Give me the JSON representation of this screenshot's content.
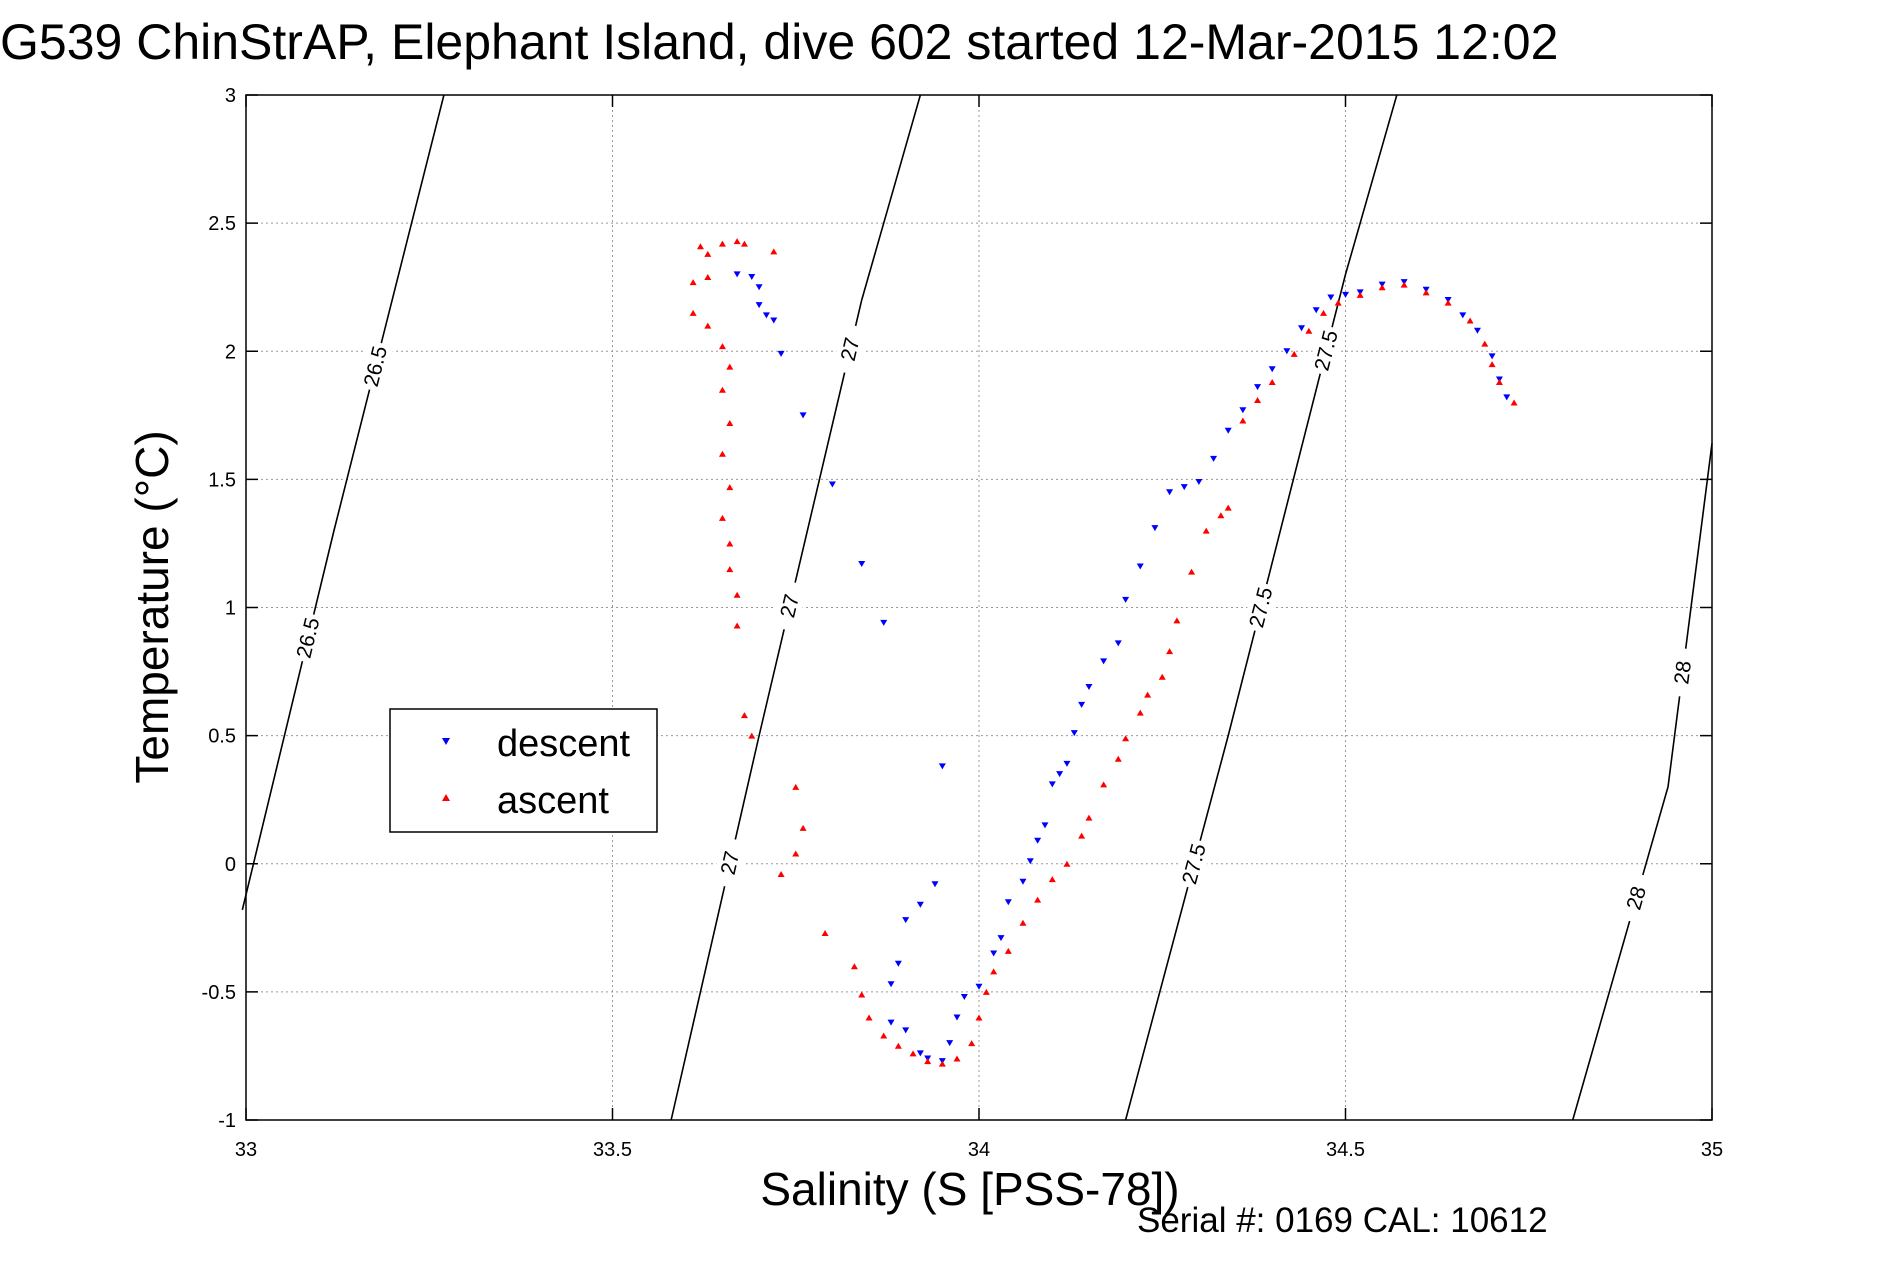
{
  "figure": {
    "title": "G539 ChinStrAP, Elephant Island, dive 602 started 12-Mar-2015 12:02",
    "footer": "Serial #: 0169 CAL: 10612"
  },
  "chart_data": {
    "type": "scatter",
    "xlabel": "Salinity (S [PSS-78])",
    "ylabel": "Temperature (°C)",
    "xlim": [
      33,
      35
    ],
    "ylim": [
      -1,
      3
    ],
    "xticks": [
      33,
      33.5,
      34,
      34.5,
      35
    ],
    "xtick_labels": [
      "33",
      "33.5",
      "34",
      "34.5",
      "35"
    ],
    "yticks": [
      -1,
      -0.5,
      0,
      0.5,
      1,
      1.5,
      2,
      2.5,
      3
    ],
    "ytick_labels": [
      "-1",
      "-0.5",
      "0",
      "0.5",
      "1",
      "1.5",
      "2",
      "2.5",
      "3"
    ],
    "grid": true,
    "legend_position": "center-left",
    "colors": {
      "descent": "#0000ff",
      "ascent": "#ff0000",
      "contour": "#000000"
    },
    "series": [
      {
        "name": "descent",
        "marker": "triangle-down",
        "color": "#0000ff",
        "points": [
          [
            33.67,
            2.3
          ],
          [
            33.69,
            2.29
          ],
          [
            33.7,
            2.25
          ],
          [
            33.7,
            2.18
          ],
          [
            33.71,
            2.14
          ],
          [
            33.72,
            2.12
          ],
          [
            33.73,
            1.99
          ],
          [
            33.76,
            1.75
          ],
          [
            33.8,
            1.48
          ],
          [
            33.84,
            1.17
          ],
          [
            33.87,
            0.94
          ],
          [
            33.95,
            0.38
          ],
          [
            33.94,
            -0.08
          ],
          [
            33.92,
            -0.16
          ],
          [
            33.9,
            -0.22
          ],
          [
            33.89,
            -0.39
          ],
          [
            33.88,
            -0.47
          ],
          [
            33.88,
            -0.62
          ],
          [
            33.9,
            -0.65
          ],
          [
            33.92,
            -0.74
          ],
          [
            33.93,
            -0.76
          ],
          [
            33.95,
            -0.77
          ],
          [
            33.96,
            -0.7
          ],
          [
            33.97,
            -0.6
          ],
          [
            33.98,
            -0.52
          ],
          [
            34.0,
            -0.48
          ],
          [
            34.02,
            -0.35
          ],
          [
            34.03,
            -0.29
          ],
          [
            34.04,
            -0.15
          ],
          [
            34.06,
            -0.07
          ],
          [
            34.07,
            0.01
          ],
          [
            34.08,
            0.09
          ],
          [
            34.09,
            0.15
          ],
          [
            34.1,
            0.31
          ],
          [
            34.11,
            0.35
          ],
          [
            34.12,
            0.39
          ],
          [
            34.13,
            0.51
          ],
          [
            34.14,
            0.62
          ],
          [
            34.15,
            0.69
          ],
          [
            34.17,
            0.79
          ],
          [
            34.19,
            0.86
          ],
          [
            34.2,
            1.03
          ],
          [
            34.22,
            1.16
          ],
          [
            34.24,
            1.31
          ],
          [
            34.26,
            1.45
          ],
          [
            34.28,
            1.47
          ],
          [
            34.3,
            1.49
          ],
          [
            34.32,
            1.58
          ],
          [
            34.34,
            1.69
          ],
          [
            34.36,
            1.77
          ],
          [
            34.38,
            1.86
          ],
          [
            34.4,
            1.93
          ],
          [
            34.42,
            2.0
          ],
          [
            34.44,
            2.09
          ],
          [
            34.46,
            2.16
          ],
          [
            34.48,
            2.21
          ],
          [
            34.5,
            2.22
          ],
          [
            34.52,
            2.23
          ],
          [
            34.55,
            2.26
          ],
          [
            34.58,
            2.27
          ],
          [
            34.61,
            2.24
          ],
          [
            34.64,
            2.2
          ],
          [
            34.66,
            2.14
          ],
          [
            34.68,
            2.08
          ],
          [
            34.7,
            1.98
          ],
          [
            34.71,
            1.89
          ],
          [
            34.72,
            1.82
          ]
        ]
      },
      {
        "name": "ascent",
        "marker": "triangle-up",
        "color": "#ff0000",
        "points": [
          [
            33.62,
            2.41
          ],
          [
            33.65,
            2.42
          ],
          [
            33.67,
            2.43
          ],
          [
            33.68,
            2.42
          ],
          [
            33.63,
            2.38
          ],
          [
            33.61,
            2.27
          ],
          [
            33.63,
            2.29
          ],
          [
            33.72,
            2.39
          ],
          [
            33.61,
            2.15
          ],
          [
            33.63,
            2.1
          ],
          [
            33.65,
            2.02
          ],
          [
            33.66,
            1.94
          ],
          [
            33.65,
            1.85
          ],
          [
            33.66,
            1.72
          ],
          [
            33.65,
            1.6
          ],
          [
            33.66,
            1.47
          ],
          [
            33.65,
            1.35
          ],
          [
            33.66,
            1.25
          ],
          [
            33.66,
            1.15
          ],
          [
            33.67,
            1.05
          ],
          [
            33.67,
            0.93
          ],
          [
            33.68,
            0.58
          ],
          [
            33.69,
            0.5
          ],
          [
            33.75,
            0.3
          ],
          [
            33.76,
            0.14
          ],
          [
            33.75,
            0.04
          ],
          [
            33.73,
            -0.04
          ],
          [
            33.79,
            -0.27
          ],
          [
            33.83,
            -0.4
          ],
          [
            33.84,
            -0.51
          ],
          [
            33.85,
            -0.6
          ],
          [
            33.87,
            -0.67
          ],
          [
            33.89,
            -0.71
          ],
          [
            33.91,
            -0.74
          ],
          [
            33.93,
            -0.77
          ],
          [
            33.95,
            -0.78
          ],
          [
            33.97,
            -0.76
          ],
          [
            33.99,
            -0.7
          ],
          [
            34.0,
            -0.6
          ],
          [
            34.01,
            -0.5
          ],
          [
            34.02,
            -0.42
          ],
          [
            34.04,
            -0.34
          ],
          [
            34.06,
            -0.23
          ],
          [
            34.08,
            -0.14
          ],
          [
            34.1,
            -0.06
          ],
          [
            34.12,
            0.0
          ],
          [
            34.14,
            0.11
          ],
          [
            34.15,
            0.18
          ],
          [
            34.17,
            0.31
          ],
          [
            34.19,
            0.41
          ],
          [
            34.2,
            0.49
          ],
          [
            34.22,
            0.59
          ],
          [
            34.23,
            0.66
          ],
          [
            34.25,
            0.73
          ],
          [
            34.26,
            0.83
          ],
          [
            34.27,
            0.95
          ],
          [
            34.29,
            1.14
          ],
          [
            34.31,
            1.3
          ],
          [
            34.33,
            1.36
          ],
          [
            34.34,
            1.39
          ],
          [
            34.36,
            1.73
          ],
          [
            34.38,
            1.81
          ],
          [
            34.4,
            1.88
          ],
          [
            34.43,
            1.99
          ],
          [
            34.45,
            2.08
          ],
          [
            34.47,
            2.15
          ],
          [
            34.49,
            2.19
          ],
          [
            34.52,
            2.22
          ],
          [
            34.55,
            2.25
          ],
          [
            34.58,
            2.26
          ],
          [
            34.61,
            2.23
          ],
          [
            34.64,
            2.19
          ],
          [
            34.67,
            2.12
          ],
          [
            34.69,
            2.03
          ],
          [
            34.7,
            1.95
          ],
          [
            34.71,
            1.88
          ],
          [
            34.73,
            1.8
          ]
        ]
      }
    ],
    "density_contours": [
      {
        "value": 26.5,
        "labels": [
          "26.5",
          "26.5"
        ],
        "points": [
          [
            32.995,
            -0.18
          ],
          [
            33.12,
            1.3
          ],
          [
            33.27,
            3.0
          ]
        ]
      },
      {
        "value": 27,
        "labels": [
          "27",
          "27",
          "27"
        ],
        "points": [
          [
            33.58,
            -1.0
          ],
          [
            33.7,
            0.5
          ],
          [
            33.84,
            2.2
          ],
          [
            33.92,
            3.0
          ]
        ]
      },
      {
        "value": 27.5,
        "labels": [
          "27.5",
          "27.5",
          "27.5"
        ],
        "points": [
          [
            34.2,
            -1.0
          ],
          [
            34.34,
            0.5
          ],
          [
            34.5,
            2.3
          ],
          [
            34.57,
            3.0
          ]
        ]
      },
      {
        "value": 28,
        "labels": [
          "28",
          "28"
        ],
        "points": [
          [
            34.81,
            -1.0
          ],
          [
            34.94,
            0.3
          ],
          [
            35.0,
            1.64
          ]
        ]
      }
    ],
    "legend": {
      "entries": [
        "descent",
        "ascent"
      ]
    }
  }
}
